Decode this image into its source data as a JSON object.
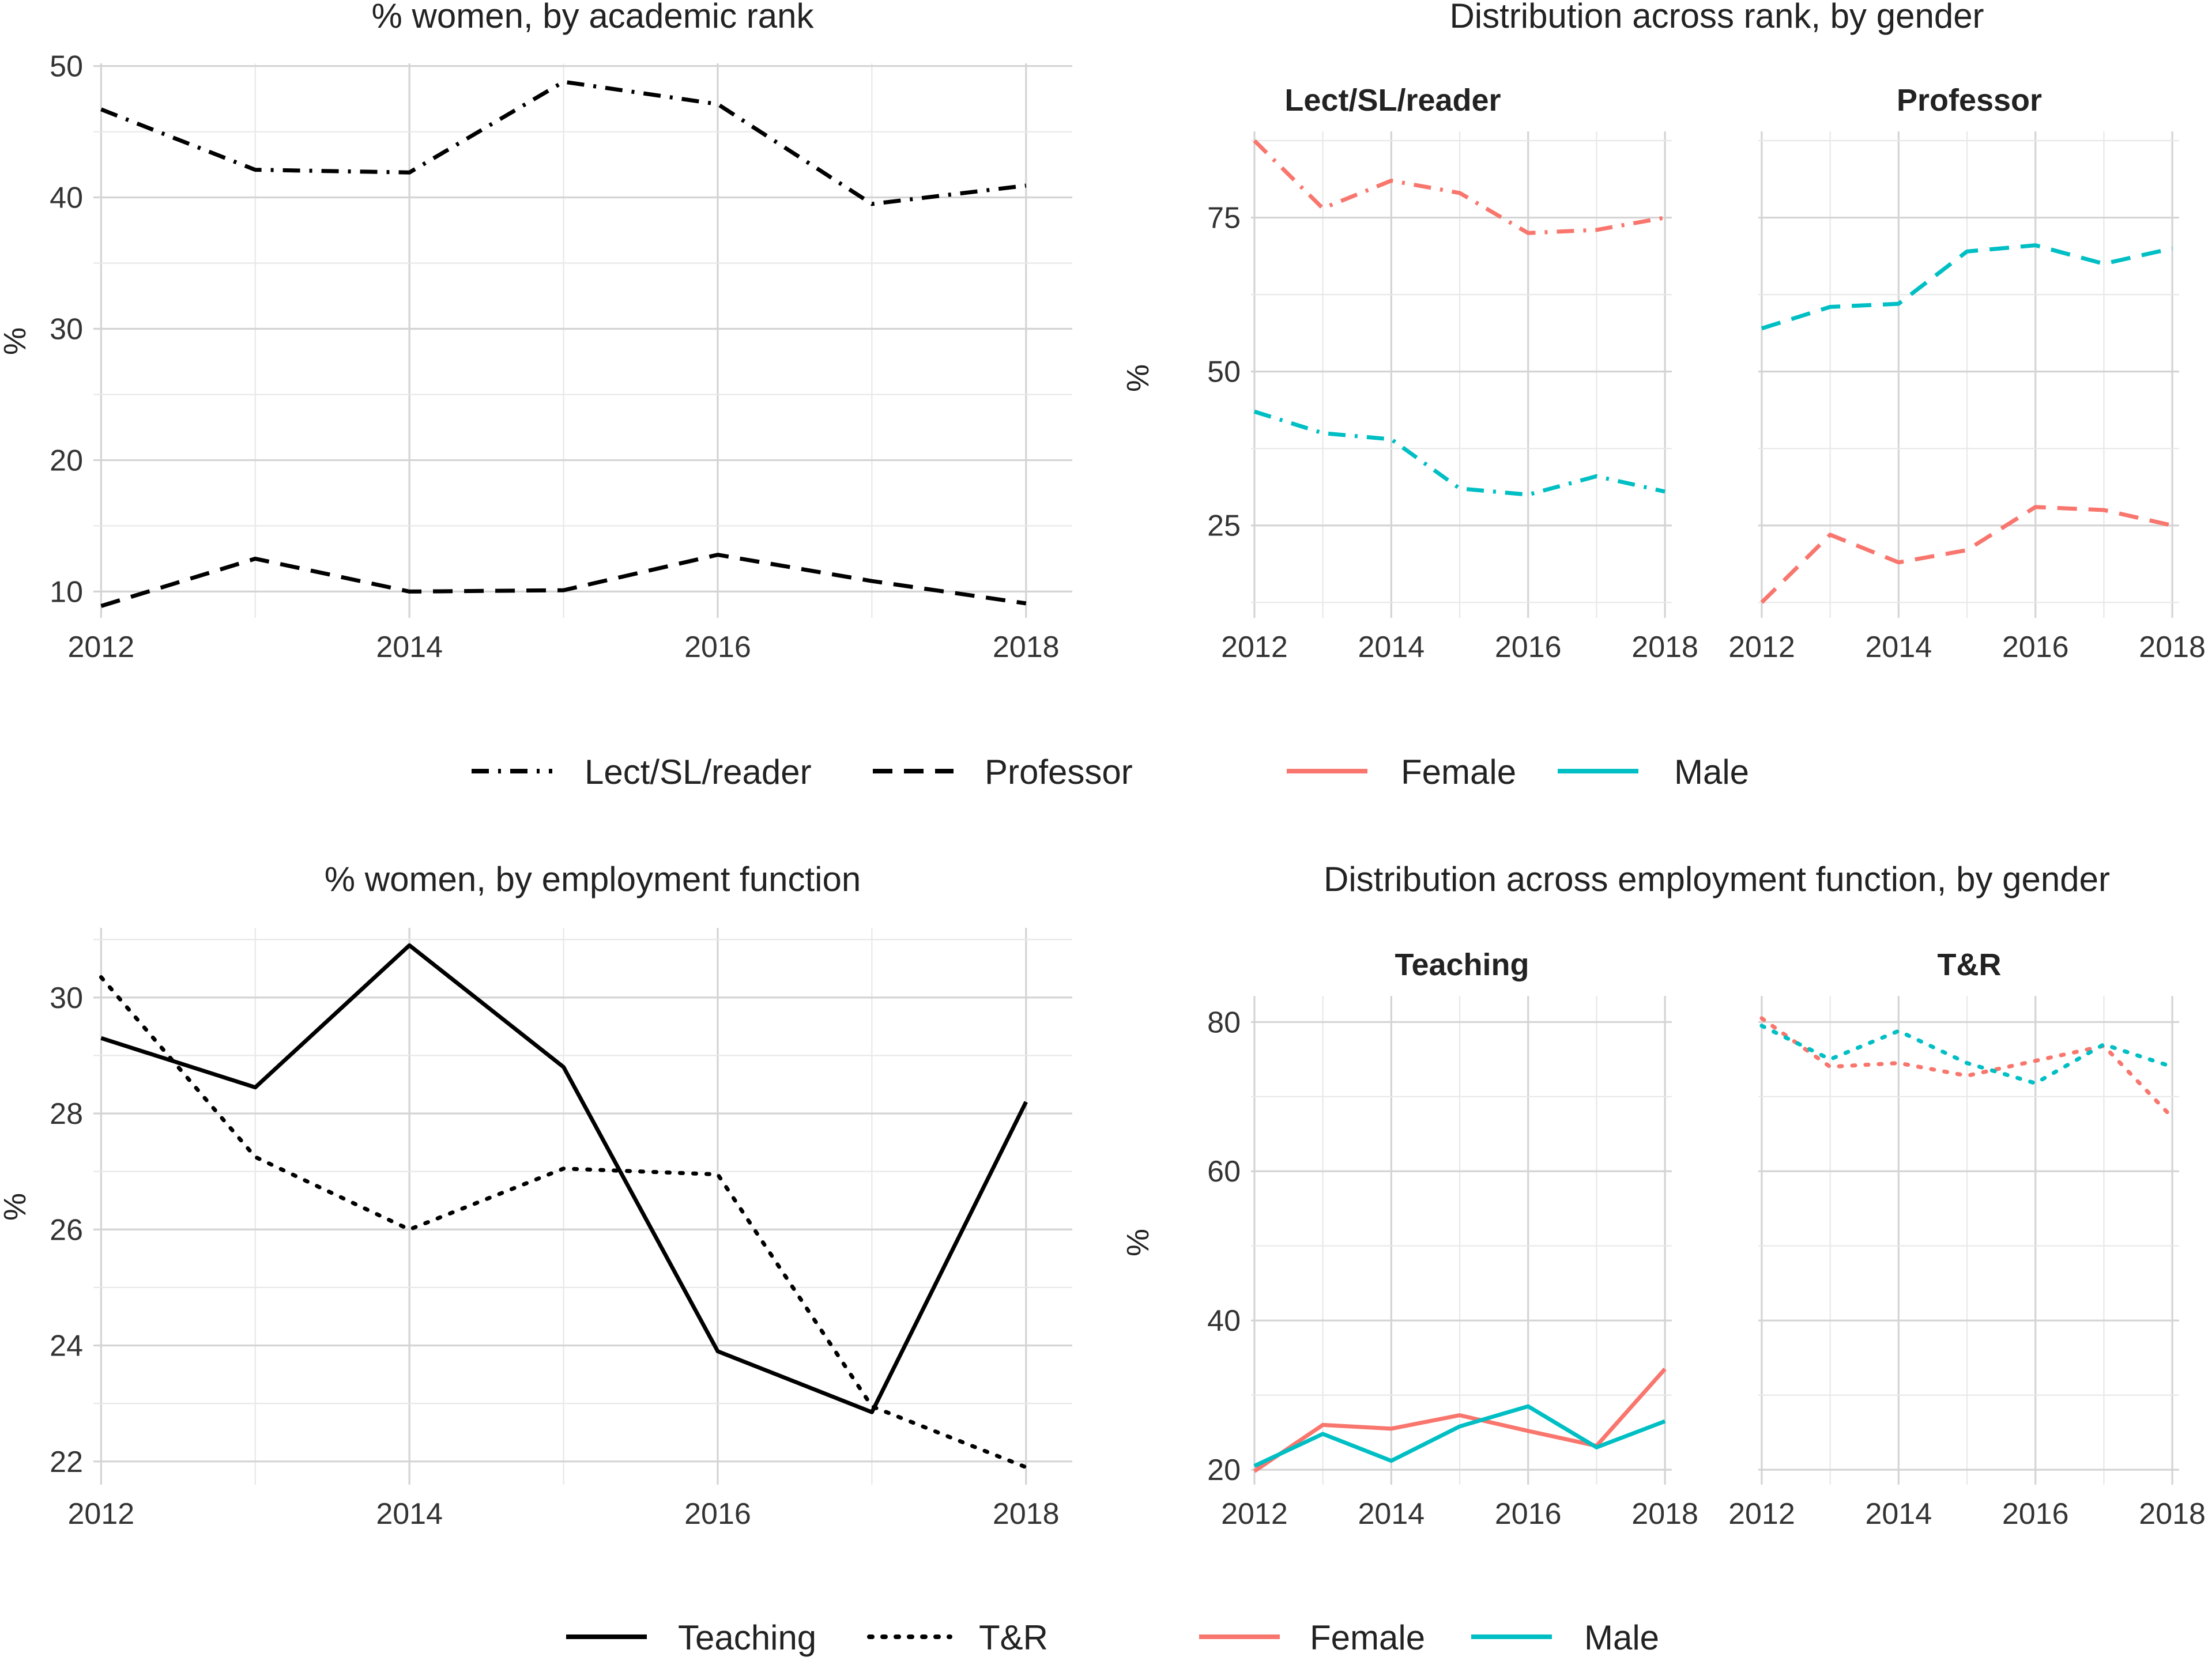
{
  "colors": {
    "female": "#F8766D",
    "male": "#00BFC4",
    "black": "#000000"
  },
  "chart_data": [
    {
      "type": "line",
      "title": "% women, by academic rank",
      "ylabel": "%",
      "x": [
        2012,
        2013,
        2014,
        2015,
        2016,
        2017,
        2018
      ],
      "xticks": [
        "2012",
        "2014",
        "2016",
        "2018"
      ],
      "xlim": [
        2011.95,
        2018.3
      ],
      "ylim": [
        8,
        50.2
      ],
      "yticks": [
        "10",
        "20",
        "30",
        "40",
        "50"
      ],
      "series": [
        {
          "name": "Lect/SL/reader",
          "linetype": "dotdash",
          "values": [
            46.7,
            42.1,
            41.9,
            48.8,
            47.1,
            39.5,
            40.9
          ]
        },
        {
          "name": "Professor",
          "linetype": "dashed",
          "values": [
            8.9,
            12.5,
            10.0,
            10.1,
            12.8,
            10.8,
            9.1
          ]
        }
      ]
    },
    {
      "type": "line",
      "title": "Distribution across rank, by gender",
      "ylabel": "%",
      "x": [
        2012,
        2013,
        2014,
        2015,
        2016,
        2017,
        2018
      ],
      "xticks": [
        "2012",
        "2014",
        "2016",
        "2018"
      ],
      "xlim": [
        2011.95,
        2018.1
      ],
      "ylim": [
        10,
        89
      ],
      "yticks": [
        "25",
        "50",
        "75"
      ],
      "facets": [
        {
          "title": "Lect/SL/reader",
          "linetype": "dotdash",
          "series": [
            {
              "name": "Female",
              "color": "#F8766D",
              "values": [
                87.5,
                76.5,
                81.0,
                79.0,
                72.5,
                73.0,
                75.0
              ]
            },
            {
              "name": "Male",
              "color": "#00BFC4",
              "values": [
                43.5,
                40.0,
                39.0,
                31.0,
                30.0,
                33.0,
                30.5
              ]
            }
          ]
        },
        {
          "title": "Professor",
          "linetype": "dashed",
          "series": [
            {
              "name": "Female",
              "color": "#F8766D",
              "values": [
                12.5,
                23.5,
                19.0,
                21.0,
                28.0,
                27.5,
                25.0
              ]
            },
            {
              "name": "Male",
              "color": "#00BFC4",
              "values": [
                57.0,
                60.5,
                61.0,
                69.5,
                70.5,
                67.5,
                70.0
              ]
            }
          ]
        }
      ]
    },
    {
      "type": "line",
      "title": "% women, by employment function",
      "ylabel": "%",
      "x": [
        2012,
        2013,
        2014,
        2015,
        2016,
        2017,
        2018
      ],
      "xticks": [
        "2012",
        "2014",
        "2016",
        "2018"
      ],
      "xlim": [
        2011.95,
        2018.3
      ],
      "ylim": [
        21.6,
        31.2
      ],
      "yticks": [
        "22",
        "24",
        "26",
        "28",
        "30"
      ],
      "series": [
        {
          "name": "Teaching",
          "linetype": "solid",
          "values": [
            29.3,
            28.45,
            30.9,
            28.8,
            23.9,
            22.85,
            28.2
          ]
        },
        {
          "name": "T&R",
          "linetype": "dotted",
          "values": [
            30.35,
            27.25,
            26.0,
            27.05,
            26.95,
            22.95,
            21.9
          ]
        }
      ]
    },
    {
      "type": "line",
      "title": "Distribution across employment function, by gender",
      "ylabel": "%",
      "x": [
        2012,
        2013,
        2014,
        2015,
        2016,
        2017,
        2018
      ],
      "xticks": [
        "2012",
        "2014",
        "2016",
        "2018"
      ],
      "xlim": [
        2011.95,
        2018.1
      ],
      "ylim": [
        18,
        83.5
      ],
      "yticks": [
        "20",
        "40",
        "60",
        "80"
      ],
      "facets": [
        {
          "title": "Teaching",
          "linetype": "solid",
          "series": [
            {
              "name": "Female",
              "color": "#F8766D",
              "values": [
                19.8,
                26.0,
                25.5,
                27.3,
                25.2,
                23.2,
                33.5
              ]
            },
            {
              "name": "Male",
              "color": "#00BFC4",
              "values": [
                20.5,
                24.8,
                21.2,
                25.8,
                28.5,
                23.0,
                26.5
              ]
            }
          ]
        },
        {
          "title": "T&R",
          "linetype": "dotted",
          "series": [
            {
              "name": "Female",
              "color": "#F8766D",
              "values": [
                80.5,
                74.0,
                74.5,
                72.8,
                74.8,
                76.8,
                67.2
              ]
            },
            {
              "name": "Male",
              "color": "#00BFC4",
              "values": [
                79.5,
                75.0,
                78.8,
                74.5,
                71.8,
                77.0,
                74.0
              ]
            }
          ]
        }
      ]
    }
  ],
  "legends": {
    "top_linetype": [
      {
        "label": "Lect/SL/reader",
        "linetype": "dotdash"
      },
      {
        "label": "Professor",
        "linetype": "dashed"
      }
    ],
    "top_color": [
      {
        "label": "Female",
        "color": "#F8766D"
      },
      {
        "label": "Male",
        "color": "#00BFC4"
      }
    ],
    "bottom_linetype": [
      {
        "label": "Teaching",
        "linetype": "solid"
      },
      {
        "label": "T&R",
        "linetype": "dotted"
      }
    ],
    "bottom_color": [
      {
        "label": "Female",
        "color": "#F8766D"
      },
      {
        "label": "Male",
        "color": "#00BFC4"
      }
    ]
  }
}
